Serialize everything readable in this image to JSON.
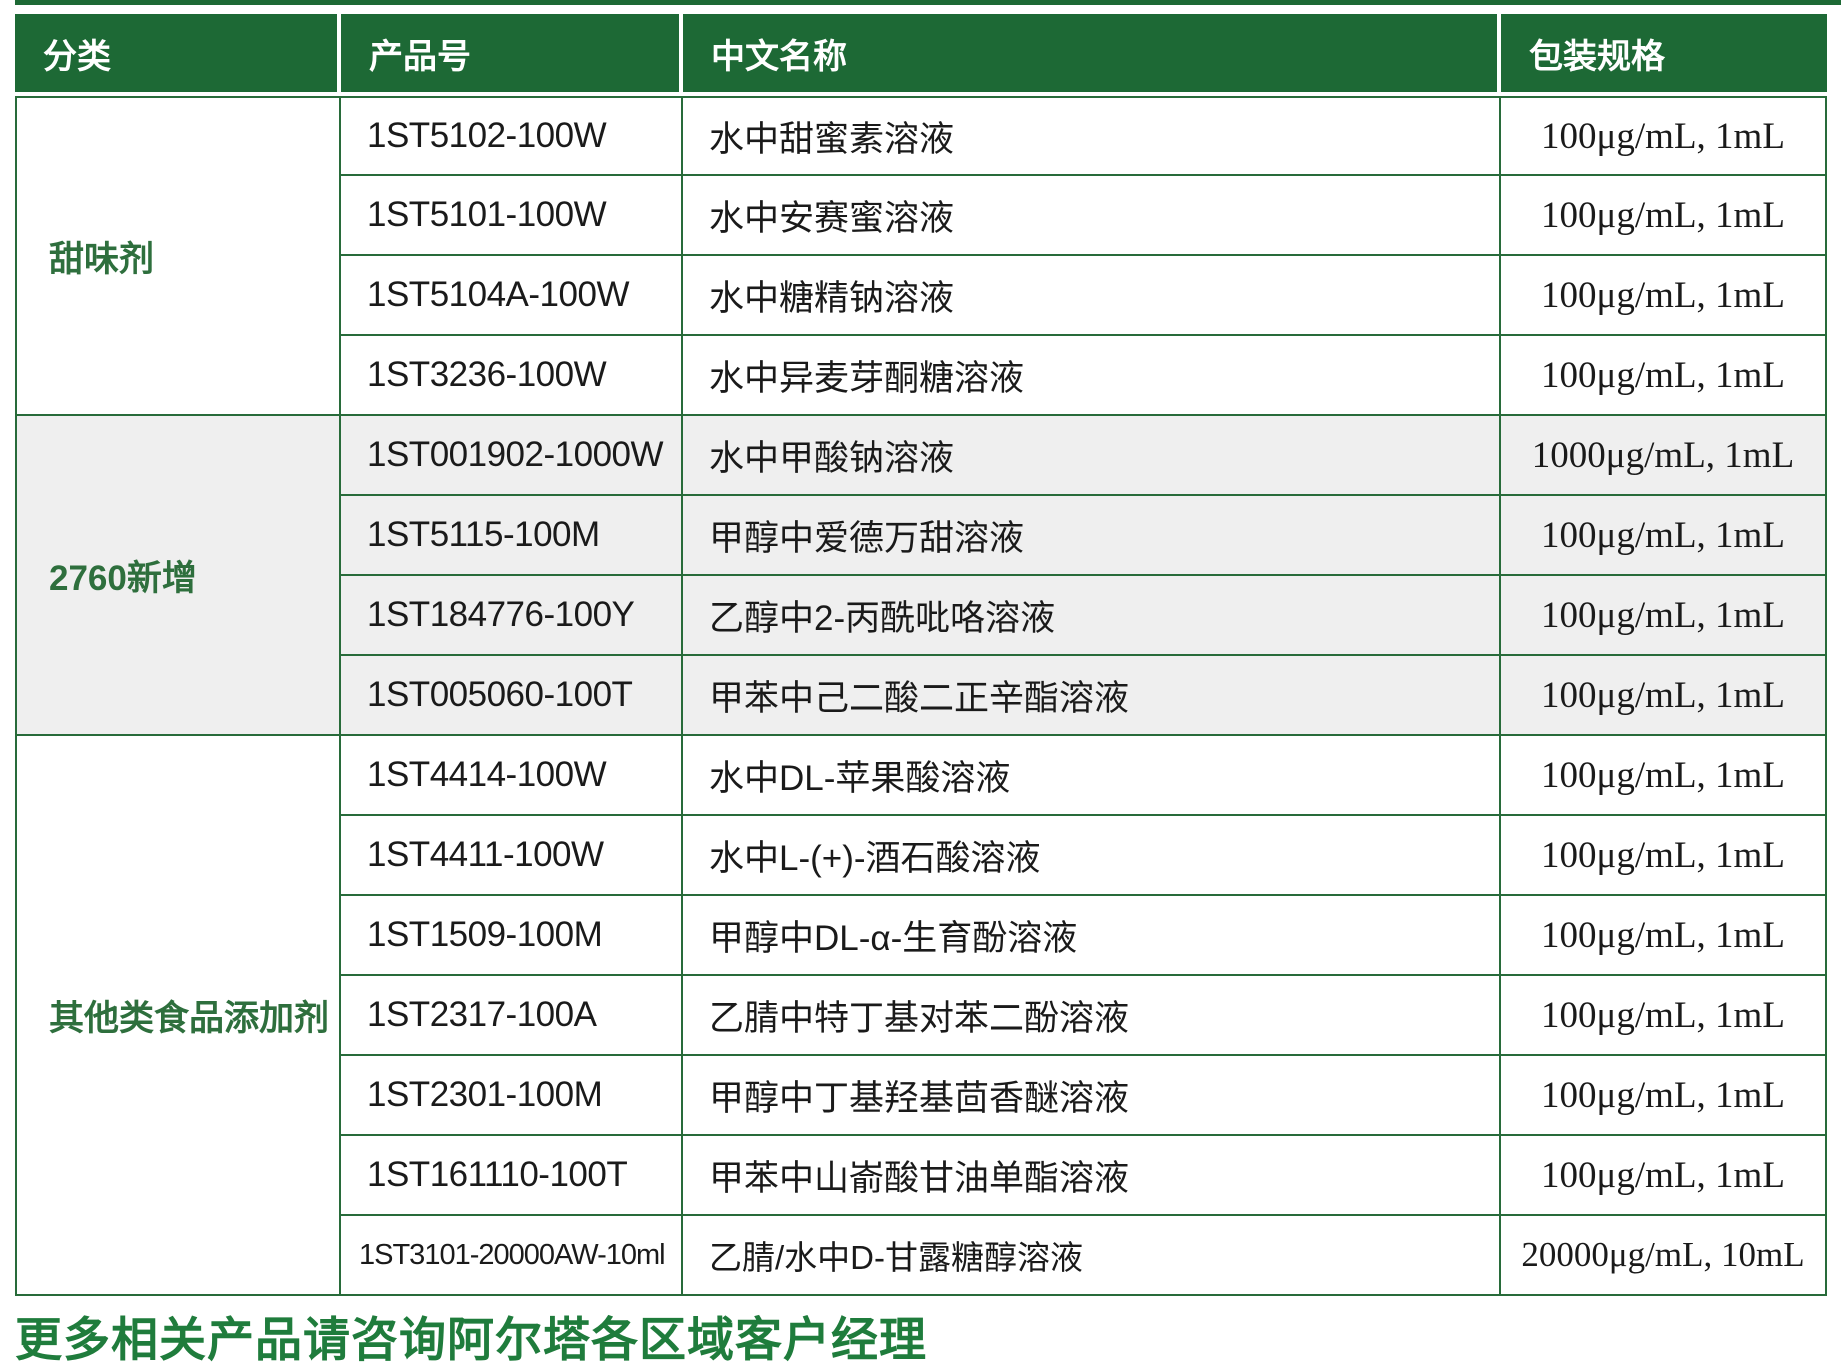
{
  "colors": {
    "header_bg": "#1d6935",
    "border_green": "#286b3a",
    "shaded_row": "#efefef",
    "category_text": "#2e6f3d",
    "footer_text": "#1f7c3c",
    "header_text": "#ffffff",
    "body_text": "#1a1a1a"
  },
  "table": {
    "headers": [
      "分类",
      "产品号",
      "中文名称",
      "包装规格"
    ],
    "groups": [
      {
        "category": "甜味剂",
        "shaded": false,
        "rows": [
          {
            "pn": "1ST5102-100W",
            "name": "水中甜蜜素溶液",
            "spec": "100μg/mL, 1mL"
          },
          {
            "pn": "1ST5101-100W",
            "name": "水中安赛蜜溶液",
            "spec": "100μg/mL, 1mL"
          },
          {
            "pn": "1ST5104A-100W",
            "name": "水中糖精钠溶液",
            "spec": "100μg/mL, 1mL"
          },
          {
            "pn": "1ST3236-100W",
            "name": "水中异麦芽酮糖溶液",
            "spec": "100μg/mL, 1mL"
          }
        ]
      },
      {
        "category": "2760新增",
        "shaded": true,
        "rows": [
          {
            "pn": "1ST001902-1000W",
            "name": "水中甲酸钠溶液",
            "spec": "1000μg/mL, 1mL"
          },
          {
            "pn": "1ST5115-100M",
            "name": "甲醇中爱德万甜溶液",
            "spec": "100μg/mL, 1mL"
          },
          {
            "pn": "1ST184776-100Y",
            "name": "乙醇中2-丙酰吡咯溶液",
            "spec": "100μg/mL, 1mL"
          },
          {
            "pn": "1ST005060-100T",
            "name": "甲苯中己二酸二正辛酯溶液",
            "spec": "100μg/mL, 1mL"
          }
        ]
      },
      {
        "category": "其他类食品添加剂",
        "shaded": false,
        "rows": [
          {
            "pn": "1ST4414-100W",
            "name": "水中DL-苹果酸溶液",
            "spec": "100μg/mL, 1mL"
          },
          {
            "pn": "1ST4411-100W",
            "name": "水中L-(+)-酒石酸溶液",
            "spec": "100μg/mL, 1mL"
          },
          {
            "pn": "1ST1509-100M",
            "name": "甲醇中DL-α-生育酚溶液",
            "spec": "100μg/mL, 1mL"
          },
          {
            "pn": "1ST2317-100A",
            "name": "乙腈中特丁基对苯二酚溶液",
            "spec": "100μg/mL, 1mL"
          },
          {
            "pn": "1ST2301-100M",
            "name": "甲醇中丁基羟基茴香醚溶液",
            "spec": "100μg/mL, 1mL"
          },
          {
            "pn": "1ST161110-100T",
            "name": "甲苯中山嵛酸甘油单酯溶液",
            "spec": "100μg/mL, 1mL"
          },
          {
            "pn": "1ST3101-20000AW-10ml",
            "name": "乙腈/水中D-甘露糖醇溶液",
            "spec": "20000μg/mL, 10mL",
            "compact": true
          }
        ]
      }
    ]
  },
  "footer": {
    "note": "更多相关产品请咨询阿尔塔各区域客户经理"
  }
}
